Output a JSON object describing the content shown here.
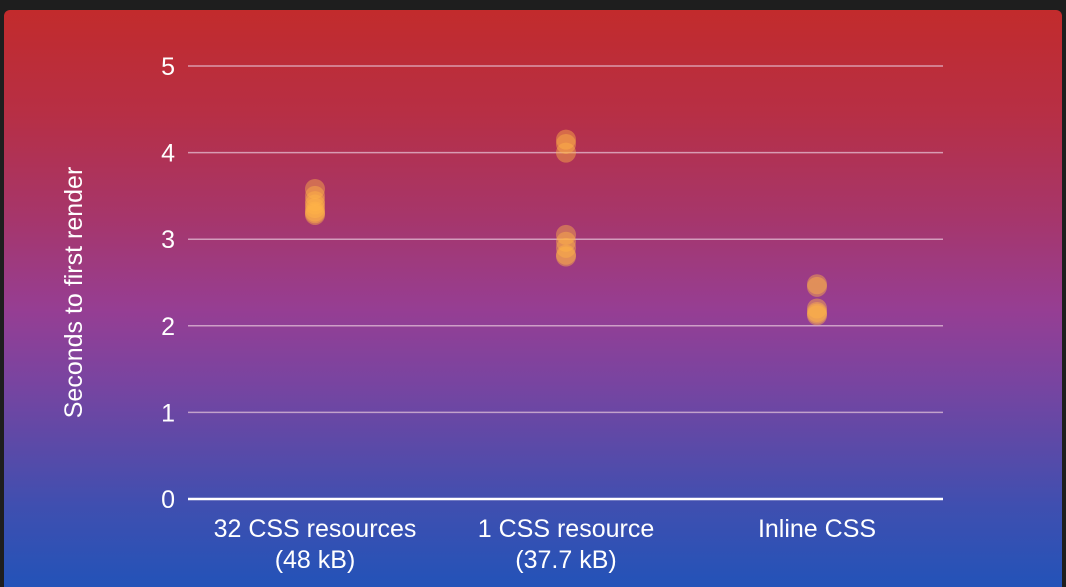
{
  "colors": {
    "background_top": "#c22b2c",
    "background_bottom": "#2353b8",
    "grid": "#e8c9dc",
    "axis": "#ffffff",
    "text": "#ffffff",
    "point": "#ffb347"
  },
  "chart_data": {
    "type": "scatter",
    "title": "",
    "xlabel": "",
    "ylabel": "Seconds to first render",
    "ylim": [
      0,
      5
    ],
    "yticks": [
      0,
      1,
      2,
      3,
      4,
      5
    ],
    "grid": true,
    "categories": [
      {
        "line1": "32 CSS resources",
        "line2": "(48 kB)"
      },
      {
        "line1": "1 CSS resource",
        "line2": "(37.7 kB)"
      },
      {
        "line1": "Inline CSS",
        "line2": ""
      }
    ],
    "series": [
      {
        "category": 0,
        "values": [
          3.58,
          3.5,
          3.44,
          3.4,
          3.36,
          3.32,
          3.3,
          3.28
        ]
      },
      {
        "category": 1,
        "values": [
          4.15,
          4.1,
          4.0,
          3.05,
          2.97,
          2.9,
          2.82,
          2.8
        ]
      },
      {
        "category": 2,
        "values": [
          2.48,
          2.45,
          2.2,
          2.16,
          2.14,
          2.12
        ]
      }
    ]
  }
}
